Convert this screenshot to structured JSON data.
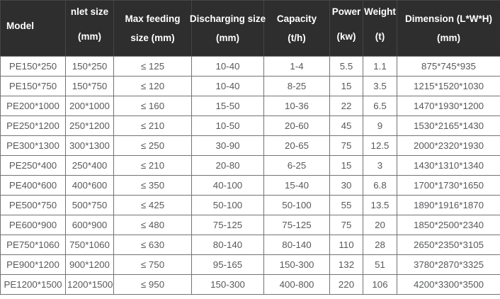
{
  "colors": {
    "header_bg": "#2e2e2e",
    "header_text": "#ffffff",
    "body_text": "#58595b",
    "border": "#737373"
  },
  "table": {
    "columns": [
      {
        "line1": "Model",
        "line2": ""
      },
      {
        "line1": "nlet size",
        "line2": "(mm)"
      },
      {
        "line1": "Max feeding",
        "line2": "size (mm)"
      },
      {
        "line1": "Discharging size",
        "line2": "(mm)"
      },
      {
        "line1": "Capacity",
        "line2": "(t/h)"
      },
      {
        "line1": "Power",
        "line2": "(kw)"
      },
      {
        "line1": "Weight",
        "line2": "(t)"
      },
      {
        "line1": "Dimension (L*W*H)",
        "line2": "(mm)"
      }
    ],
    "rows": [
      [
        "PE150*250",
        "150*250",
        "≤ 125",
        "10-40",
        "1-4",
        "5.5",
        "1.1",
        "875*745*935"
      ],
      [
        "PE150*750",
        "150*750",
        "≤ 120",
        "10-40",
        "8-25",
        "15",
        "3.5",
        "1215*1520*1030"
      ],
      [
        "PE200*1000",
        "200*1000",
        "≤ 160",
        "15-50",
        "10-36",
        "22",
        "6.5",
        "1470*1930*1200"
      ],
      [
        "PE250*1200",
        "250*1200",
        "≤ 210",
        "10-50",
        "20-60",
        "45",
        "9",
        "1530*2165*1430"
      ],
      [
        "PE300*1300",
        "300*1300",
        "≤ 250",
        "30-90",
        "20-65",
        "75",
        "12.5",
        "2000*2320*1930"
      ],
      [
        "PE250*400",
        "250*400",
        "≤ 210",
        "20-80",
        "6-25",
        "15",
        "3",
        "1430*1310*1340"
      ],
      [
        "PE400*600",
        "400*600",
        "≤ 350",
        "40-100",
        "15-40",
        "30",
        "6.8",
        "1700*1730*1650"
      ],
      [
        "PE500*750",
        "500*750",
        "≤ 425",
        "50-100",
        "50-100",
        "55",
        "13.5",
        "1890*1916*1870"
      ],
      [
        "PE600*900",
        "600*900",
        "≤ 480",
        "75-125",
        "75-125",
        "75",
        "20",
        "1850*2500*2340"
      ],
      [
        "PE750*1060",
        "750*1060",
        "≤ 630",
        "80-140",
        "80-140",
        "110",
        "28",
        "2650*2350*3105"
      ],
      [
        "PE900*1200",
        "900*1200",
        "≤ 750",
        "95-165",
        "150-300",
        "132",
        "51",
        "3780*2870*3325"
      ],
      [
        "PE1200*1500",
        "1200*1500",
        "≤ 950",
        "150-300",
        "400-800",
        "220",
        "106",
        "4200*3300*3500"
      ]
    ]
  }
}
